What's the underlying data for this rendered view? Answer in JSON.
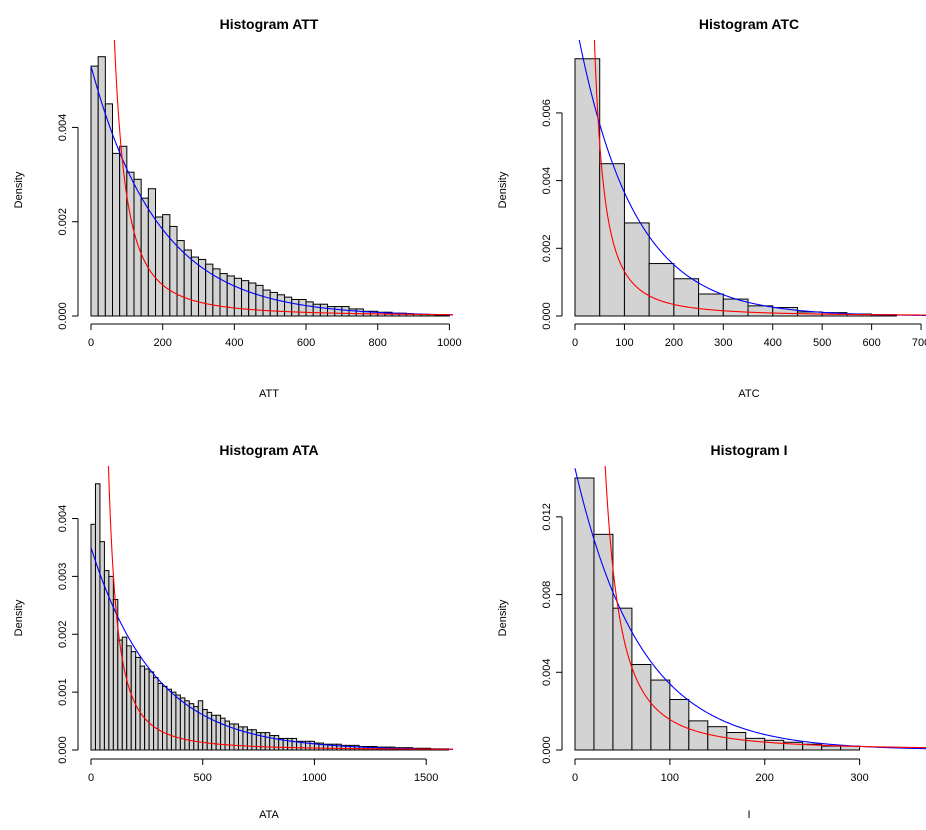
{
  "chart_data": [
    {
      "type": "bar",
      "title": "Histogram ATT",
      "xlabel": "ATT",
      "ylabel": "Density",
      "xlim": [
        0,
        1010
      ],
      "ylim": [
        0,
        0.0056
      ],
      "xticks": [
        0,
        200,
        400,
        600,
        800,
        1000
      ],
      "xtick_labels": [
        "0",
        "200",
        "400",
        "600",
        "800",
        "1000"
      ],
      "yticks": [
        0,
        0.002,
        0.004
      ],
      "ytick_labels": [
        "0.000",
        "0.002",
        "0.004"
      ],
      "bin_start": 0,
      "bin_width": 20,
      "values": [
        0.0053,
        0.0055,
        0.0045,
        0.00345,
        0.0036,
        0.00305,
        0.0029,
        0.0025,
        0.0027,
        0.0021,
        0.00215,
        0.0019,
        0.0016,
        0.0014,
        0.00125,
        0.0012,
        0.0011,
        0.001,
        0.0009,
        0.00085,
        0.0008,
        0.00075,
        0.0007,
        0.00065,
        0.00055,
        0.0005,
        0.00045,
        0.0004,
        0.00035,
        0.00035,
        0.0003,
        0.00025,
        0.00025,
        0.0002,
        0.0002,
        0.0002,
        0.00015,
        0.00015,
        0.0001,
        0.0001,
        8e-05,
        8e-05,
        6e-05,
        6e-05,
        5e-05,
        4e-05,
        3e-05,
        3e-05,
        2e-05,
        2e-05
      ],
      "series": [
        {
          "name": "",
          "color": "#0000ff",
          "kind": "exponential",
          "rate": 0.0053
        },
        {
          "name": "",
          "color": "#ff0000",
          "kind": "pareto",
          "scale": 25,
          "shape": 0.95
        }
      ]
    },
    {
      "type": "bar",
      "title": "Histogram ATC",
      "xlabel": "ATC",
      "ylabel": "Density",
      "xlim": [
        0,
        710
      ],
      "ylim": [
        0,
        0.0078
      ],
      "xticks": [
        0,
        100,
        200,
        300,
        400,
        500,
        600,
        700
      ],
      "xtick_labels": [
        "0",
        "100",
        "200",
        "300",
        "400",
        "500",
        "600",
        "700"
      ],
      "yticks": [
        0,
        0.002,
        0.004,
        0.006
      ],
      "ytick_labels": [
        "0.000",
        "0.002",
        "0.004",
        "0.006"
      ],
      "bin_start": 0,
      "bin_width": 50,
      "values": [
        0.0076,
        0.0045,
        0.00275,
        0.00155,
        0.0011,
        0.00065,
        0.0005,
        0.0003,
        0.00025,
        0.00012,
        0.0001,
        6e-05,
        4e-05
      ],
      "series": [
        {
          "name": "",
          "color": "#0000ff",
          "kind": "exponential",
          "rate": 0.0088
        },
        {
          "name": "",
          "color": "#ff0000",
          "kind": "pareto",
          "scale": 12.5,
          "shape": 0.95
        }
      ]
    },
    {
      "type": "bar",
      "title": "Histogram ATA",
      "xlabel": "ATA",
      "ylabel": "Density",
      "xlim": [
        0,
        1620
      ],
      "ylim": [
        0,
        0.0047
      ],
      "xticks": [
        0,
        500,
        1000,
        1500
      ],
      "xtick_labels": [
        "0",
        "500",
        "1000",
        "1500"
      ],
      "yticks": [
        0,
        0.001,
        0.002,
        0.003,
        0.004
      ],
      "ytick_labels": [
        "0.000",
        "0.001",
        "0.002",
        "0.003",
        "0.004"
      ],
      "bin_start": 0,
      "bin_width": 20,
      "values": [
        0.0039,
        0.0046,
        0.0036,
        0.0031,
        0.003,
        0.0026,
        0.0019,
        0.00195,
        0.0018,
        0.0017,
        0.0016,
        0.00145,
        0.0014,
        0.00135,
        0.00125,
        0.00115,
        0.0011,
        0.00105,
        0.001,
        0.00095,
        0.0009,
        0.00085,
        0.0008,
        0.00075,
        0.00085,
        0.0007,
        0.00065,
        0.0006,
        0.0006,
        0.00055,
        0.0005,
        0.00045,
        0.00045,
        0.0004,
        0.0004,
        0.00035,
        0.00035,
        0.0003,
        0.0003,
        0.0003,
        0.00025,
        0.00025,
        0.0002,
        0.0002,
        0.0002,
        0.0002,
        0.00015,
        0.00015,
        0.00015,
        0.00015,
        0.00012,
        0.00012,
        0.0001,
        0.0001,
        0.0001,
        0.0001,
        8e-05,
        8e-05,
        8e-05,
        8e-05,
        6e-05,
        6e-05,
        6e-05,
        6e-05,
        5e-05,
        5e-05,
        5e-05,
        5e-05,
        4e-05,
        4e-05,
        4e-05,
        4e-05,
        3e-05,
        3e-05,
        3e-05,
        3e-05,
        2e-05,
        2e-05,
        2e-05,
        2e-05
      ],
      "series": [
        {
          "name": "",
          "color": "#0000ff",
          "kind": "exponential",
          "rate": 0.0035
        },
        {
          "name": "",
          "color": "#ff0000",
          "kind": "pareto",
          "scale": 30,
          "shape": 0.95
        }
      ]
    },
    {
      "type": "bar",
      "title": "Histogram I",
      "xlabel": "I",
      "ylabel": "Density",
      "xlim": [
        0,
        370
      ],
      "ylim": [
        0,
        0.014
      ],
      "xticks": [
        0,
        100,
        200,
        300
      ],
      "xtick_labels": [
        "0",
        "100",
        "200",
        "300"
      ],
      "yticks": [
        0,
        0.004,
        0.008,
        0.012
      ],
      "ytick_labels": [
        "0.000",
        "0.004",
        "0.008",
        "0.012"
      ],
      "bin_start": 0,
      "bin_width": 20,
      "values": [
        0.014,
        0.0111,
        0.0073,
        0.0044,
        0.0036,
        0.0026,
        0.0015,
        0.0012,
        0.0009,
        0.0006,
        0.0005,
        0.0004,
        0.0003,
        0.0002,
        0.0002
      ],
      "series": [
        {
          "name": "",
          "color": "#0000ff",
          "kind": "exponential",
          "rate": 0.0145
        },
        {
          "name": "",
          "color": "#ff0000",
          "kind": "pareto",
          "scale": 15,
          "shape": 0.95
        }
      ]
    }
  ]
}
